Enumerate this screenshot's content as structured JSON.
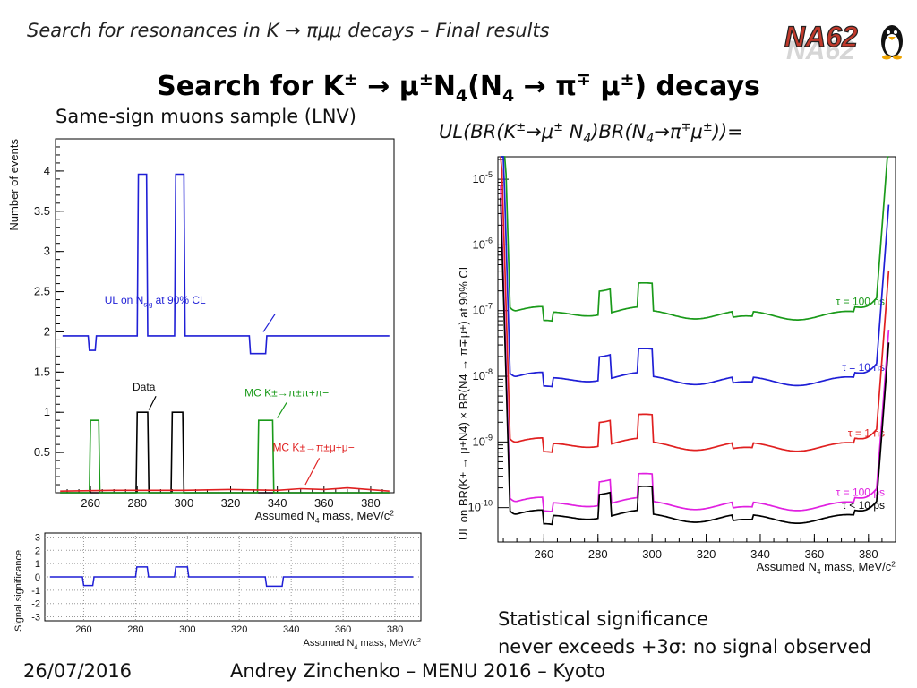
{
  "header": {
    "subtitle": "Search for resonances in K → πμμ decays – Final results"
  },
  "logo": {
    "text": "NA62"
  },
  "slide": {
    "title_main": "Search for K",
    "title_tail": "decays",
    "sample_label": "Same-sign muons sample (LNV)",
    "formula_label": "UL(BR(K±→μ± N4)BR(N4→π∓μ±))=",
    "conclusion_line1": "Statistical significance",
    "conclusion_line2": "never exceeds +3σ: no signal observed"
  },
  "footer": {
    "date": "26/07/2016",
    "text": "Andrey Zinchenko – MENU 2016 – Kyoto"
  },
  "chart_data": [
    {
      "type": "line",
      "xlabel": "Assumed N4 mass, MeV/c2",
      "ylabel": "Number of events",
      "xlim": [
        245,
        390
      ],
      "ylim": [
        0,
        4.4
      ],
      "xticks": [
        260,
        280,
        300,
        320,
        340,
        360,
        380
      ],
      "yticks": [
        0.5,
        1,
        1.5,
        2,
        2.5,
        3,
        3.5,
        4
      ],
      "annotations": [
        "UL on Nsig at 90% CL",
        "Data",
        "MC K±→π±π+π−",
        "MC K±→π±μ+μ−"
      ],
      "series": [
        {
          "name": "UL on Nsig at 90% CL",
          "color": "#1f1fd6",
          "x": [
            248,
            259,
            259.5,
            262,
            262.5,
            280,
            280.5,
            284,
            284.5,
            296,
            296.5,
            300,
            300.5,
            328,
            328.5,
            335,
            335.5,
            388
          ],
          "y": [
            1.95,
            1.95,
            1.77,
            1.77,
            1.95,
            1.95,
            3.96,
            3.96,
            1.95,
            1.95,
            3.96,
            3.96,
            1.95,
            1.95,
            1.73,
            1.73,
            1.95,
            1.95
          ]
        },
        {
          "name": "Data",
          "color": "#000000",
          "x": [
            247,
            279.5,
            280,
            284.5,
            285,
            294.5,
            295,
            299.5,
            300,
            388
          ],
          "y": [
            0,
            0,
            1,
            1,
            0,
            0,
            1,
            1,
            0,
            0
          ]
        },
        {
          "name": "MC K±→π±π+π−",
          "color": "#1a9a1a",
          "x": [
            247,
            259.5,
            260,
            263.5,
            264,
            331.5,
            332,
            338,
            338.5,
            388
          ],
          "y": [
            0,
            0,
            0.9,
            0.9,
            0,
            0,
            0.9,
            0.9,
            0,
            0
          ]
        },
        {
          "name": "MC K±→π±μ+μ−",
          "color": "#e02020",
          "x": [
            247,
            270,
            300,
            320,
            340,
            350,
            360,
            370,
            388
          ],
          "y": [
            0.02,
            0.03,
            0.03,
            0.04,
            0.03,
            0.05,
            0.04,
            0.06,
            0.02
          ]
        }
      ]
    },
    {
      "type": "line",
      "xlabel": "Assumed N4 mass, MeV/c2",
      "ylabel": "Signal significance",
      "xlim": [
        245,
        390
      ],
      "ylim": [
        -3.3,
        3.3
      ],
      "xticks": [
        260,
        280,
        300,
        320,
        340,
        360,
        380
      ],
      "yticks": [
        -3,
        -2,
        -1,
        0,
        1,
        2,
        3
      ],
      "series": [
        {
          "name": "",
          "color": "#1f1fd6",
          "x": [
            247,
            259.5,
            260,
            263.5,
            264,
            280,
            280.5,
            284.5,
            285,
            295,
            295.5,
            300,
            300.5,
            330,
            330.5,
            336.5,
            337,
            387
          ],
          "y": [
            0,
            0,
            -0.65,
            -0.65,
            0,
            0,
            0.75,
            0.75,
            0,
            0,
            0.75,
            0.75,
            0,
            0,
            -0.7,
            -0.7,
            0,
            0
          ]
        }
      ]
    },
    {
      "type": "line",
      "xlabel": "Assumed N4 mass, MeV/c2",
      "ylabel": "UL on BR(K± → μ±N4) × BR(N4 → π∓μ±) at 90% CL",
      "xlim": [
        243,
        390
      ],
      "ylim": [
        3e-11,
        2.2e-05
      ],
      "log_y": true,
      "xticks": [
        260,
        280,
        300,
        320,
        340,
        360,
        380
      ],
      "yticks": [
        "10-10",
        "10-9",
        "10-8",
        "10-7",
        "10-6",
        "10-5"
      ],
      "series": [
        {
          "name": "τ = 100 ns",
          "color": "#1a9a1a",
          "base": 1e-07
        },
        {
          "name": "τ = 10 ns",
          "color": "#1f1fd6",
          "base": 1e-08
        },
        {
          "name": "τ = 1 ns",
          "color": "#e02020",
          "base": 1e-09
        },
        {
          "name": "τ = 100 ps",
          "color": "#e020e0",
          "base": 1.25e-10
        },
        {
          "name": "τ < 10 ps",
          "color": "#000000",
          "base": 8e-11
        }
      ]
    }
  ]
}
